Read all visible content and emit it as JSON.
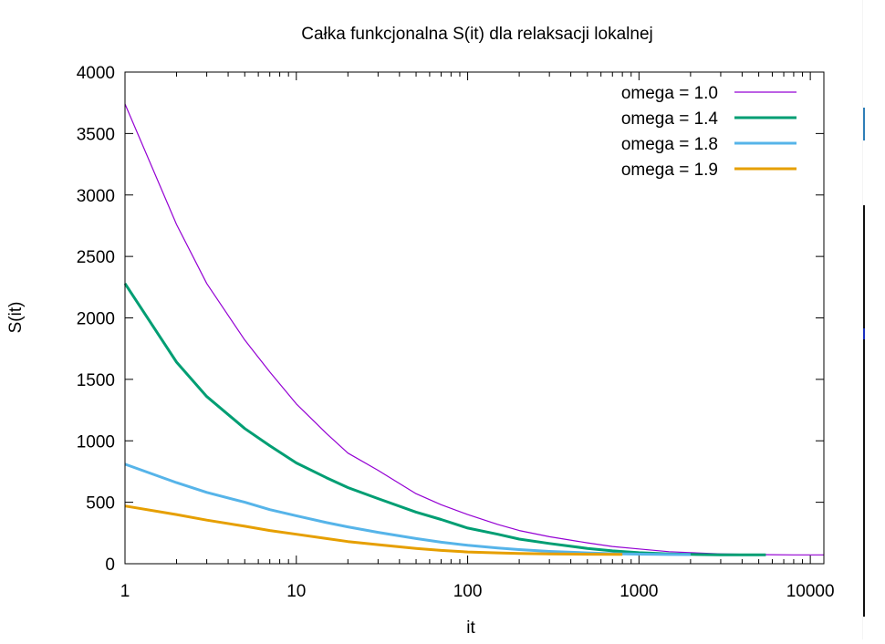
{
  "chart_data": {
    "type": "line",
    "title": "Całka funkcjonalna S(it) dla relaksacji lokalnej",
    "xlabel": "it",
    "ylabel": "S(it)",
    "x_scale": "log",
    "xlim": [
      1,
      12000
    ],
    "ylim": [
      0,
      4000
    ],
    "x_ticks": [
      1,
      10,
      100,
      1000,
      10000
    ],
    "x_tick_labels": [
      "1",
      "10",
      "100",
      "1000",
      "10000"
    ],
    "y_ticks": [
      0,
      500,
      1000,
      1500,
      2000,
      2500,
      3000,
      3500,
      4000
    ],
    "y_tick_labels": [
      "0",
      "500",
      "1000",
      "1500",
      "2000",
      "2500",
      "3000",
      "3500",
      "4000"
    ],
    "grid": false,
    "legend_position": "top-right",
    "series": [
      {
        "name": "omega = 1.0",
        "color": "#9400d3",
        "width": 1.2,
        "x": [
          1,
          2,
          3,
          5,
          7,
          10,
          15,
          20,
          30,
          50,
          70,
          100,
          150,
          200,
          300,
          500,
          700,
          1000,
          1500,
          2000,
          3000,
          5000,
          8000,
          12000
        ],
        "y": [
          3740,
          2760,
          2280,
          1820,
          1560,
          1300,
          1060,
          900,
          760,
          570,
          480,
          400,
          320,
          270,
          220,
          170,
          140,
          120,
          98,
          90,
          80,
          74,
          72,
          72
        ]
      },
      {
        "name": "omega = 1.4",
        "color": "#009e73",
        "width": 3,
        "x": [
          1,
          2,
          3,
          5,
          7,
          10,
          15,
          20,
          30,
          50,
          70,
          100,
          150,
          200,
          300,
          500,
          700,
          1000,
          1500,
          2000,
          3000,
          5500
        ],
        "y": [
          2280,
          1640,
          1360,
          1100,
          960,
          820,
          700,
          620,
          530,
          420,
          360,
          290,
          240,
          200,
          165,
          125,
          105,
          90,
          80,
          76,
          72,
          72
        ]
      },
      {
        "name": "omega = 1.8",
        "color": "#56b4e9",
        "width": 3,
        "x": [
          1,
          2,
          3,
          5,
          7,
          10,
          15,
          20,
          30,
          50,
          70,
          100,
          150,
          200,
          300,
          500,
          700,
          1000,
          1500,
          2000
        ],
        "y": [
          810,
          660,
          580,
          500,
          440,
          390,
          335,
          300,
          255,
          205,
          175,
          150,
          128,
          115,
          100,
          88,
          82,
          78,
          75,
          74
        ]
      },
      {
        "name": "omega = 1.9",
        "color": "#e69f00",
        "width": 3,
        "x": [
          1,
          2,
          3,
          5,
          7,
          10,
          15,
          20,
          30,
          50,
          70,
          100,
          150,
          200,
          300,
          500,
          800
        ],
        "y": [
          470,
          400,
          355,
          305,
          270,
          240,
          205,
          180,
          155,
          125,
          108,
          96,
          88,
          84,
          80,
          77,
          76
        ]
      }
    ]
  }
}
